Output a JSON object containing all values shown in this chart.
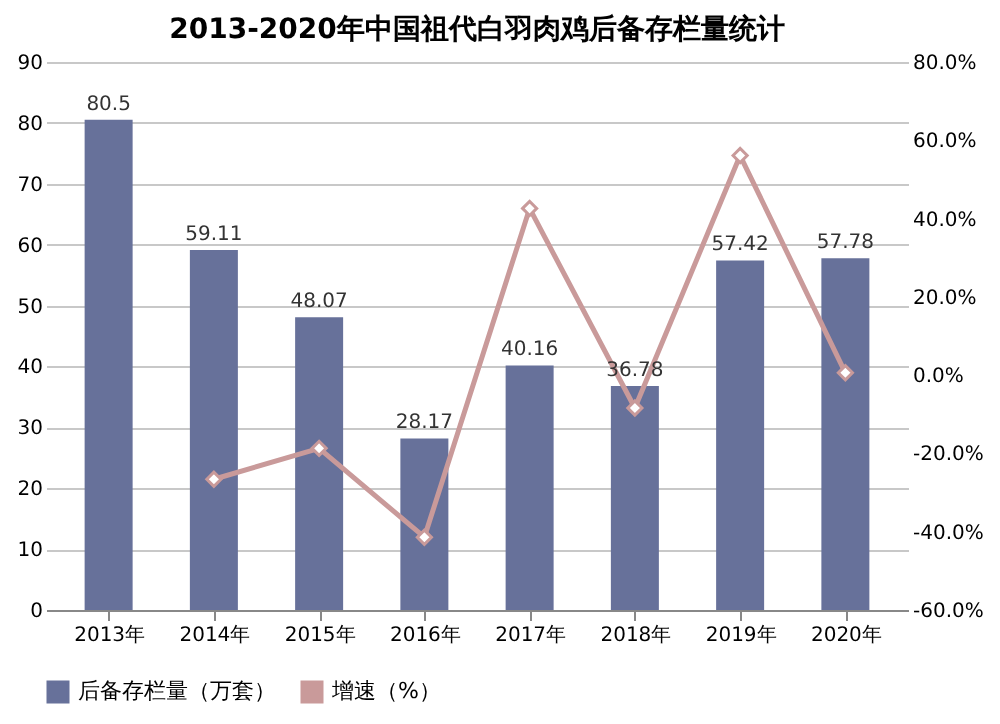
{
  "chart_data": {
    "type": "bar",
    "title": "2013-2020年中国祖代白羽肉鸡后备存栏量统计",
    "categories": [
      "2013年",
      "2014年",
      "2015年",
      "2016年",
      "2017年",
      "2018年",
      "2019年",
      "2020年"
    ],
    "series": [
      {
        "name": "后备存栏量（万套）",
        "color": "#67719a",
        "values": [
          80.5,
          59.11,
          48.07,
          28.17,
          40.16,
          36.78,
          57.42,
          57.78
        ],
        "data_labels": true
      },
      {
        "name": "增速（%）",
        "type": "line",
        "axis": "y2",
        "color": "#c99a9a",
        "marker": "diamond",
        "values": [
          null,
          -26.6,
          -18.7,
          -41.4,
          42.6,
          -8.4,
          56.1,
          0.6
        ]
      }
    ],
    "ylim": [
      0,
      90
    ],
    "yticks": [
      0,
      10,
      20,
      30,
      40,
      50,
      60,
      70,
      80,
      90
    ],
    "y2lim": [
      -60,
      80
    ],
    "y2ticks": [
      {
        "value": -60,
        "label": "-60.0%"
      },
      {
        "value": -40,
        "label": "-40.0%"
      },
      {
        "value": -20,
        "label": "-20.0%"
      },
      {
        "value": 0,
        "label": "0.0%"
      },
      {
        "value": 20,
        "label": "20.0%"
      },
      {
        "value": 40,
        "label": "40.0%"
      },
      {
        "value": 60,
        "label": "60.0%"
      },
      {
        "value": 80,
        "label": "80.0%"
      }
    ],
    "grid": "y",
    "legend": "bottom"
  }
}
